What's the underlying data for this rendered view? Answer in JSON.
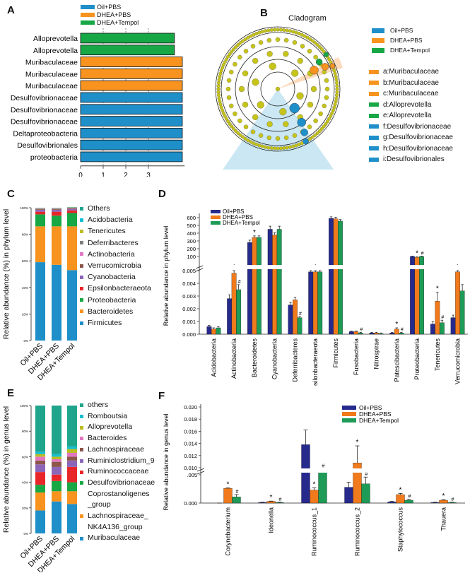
{
  "panels": {
    "A": {
      "letter": "A"
    },
    "B": {
      "letter": "B",
      "title": "Cladogram"
    },
    "C": {
      "letter": "C"
    },
    "D": {
      "letter": "D"
    },
    "E": {
      "letter": "E"
    },
    "F": {
      "letter": "F"
    }
  },
  "colors": {
    "oil_pbs": "#1f8fc9",
    "dhea_pbs": "#f7931e",
    "dhea_tempol": "#17a845",
    "navy": "#262a8c",
    "orange": "#f07a1c",
    "green": "#1e9b57",
    "node_yellow": "#c6c41a"
  },
  "chart_data": [
    {
      "panel": "A",
      "type": "bar",
      "orientation": "horizontal",
      "categories": [
        "Alloprevotella",
        "Alloprevotella",
        "Muribaculaceae",
        "Muribaculaceae",
        "Muribaculaceae",
        "Desulfovibrionaceae",
        "Desulfovibrionaceae",
        "Desulfovibrionaceae",
        "Deltaproteobacteria",
        "Desulfovibrionales",
        "proteobacteria"
      ],
      "values": [
        4.15,
        4.15,
        4.5,
        4.5,
        4.5,
        4.5,
        4.5,
        4.5,
        4.5,
        4.5,
        4.5
      ],
      "groups": [
        "DHEA+Tempol",
        "DHEA+Tempol",
        "DHEA+PBS",
        "DHEA+PBS",
        "DHEA+PBS",
        "Oil+PBS",
        "Oil+PBS",
        "Oil+PBS",
        "Oil+PBS",
        "Oil+PBS",
        "Oil+PBS"
      ],
      "legend": [
        "Oil+PBS",
        "DHEA+PBS",
        "DHEA+Tempol"
      ],
      "xlabel": "LDA SCORE (log 10)",
      "xticks": [
        0,
        1,
        2,
        3
      ],
      "xlim": [
        0,
        4.6
      ],
      "grid": "vertical dashed"
    },
    {
      "panel": "B",
      "type": "other",
      "title": "Cladogram",
      "legend": [
        "Oil+PBS",
        "DHEA+PBS",
        "DHEA+Tempol"
      ],
      "labels": [
        {
          "text": "a:Muribaculaceae",
          "group": "DHEA+PBS"
        },
        {
          "text": "b:Muribaculaceae",
          "group": "DHEA+PBS"
        },
        {
          "text": "c:Muribaculaceae",
          "group": "DHEA+PBS"
        },
        {
          "text": "d:Alloprevotella",
          "group": "DHEA+Tempol"
        },
        {
          "text": "e:Alloprevotella",
          "group": "DHEA+Tempol"
        },
        {
          "text": "f:Desulfovibrionaceae",
          "group": "Oil+PBS"
        },
        {
          "text": "g:Desulfovibrionaceae",
          "group": "Oil+PBS"
        },
        {
          "text": "h:Desulfovibrionaceae",
          "group": "Oil+PBS"
        },
        {
          "text": "i:Desulfovibrionales",
          "group": "Oil+PBS"
        }
      ]
    },
    {
      "panel": "C",
      "type": "bar",
      "stacked": true,
      "categories": [
        "Oil+PBS",
        "DHEA+PBS",
        "DHEA+Tempol"
      ],
      "ylabel": "Relative abundance (%) in phylum level",
      "yticks": [
        "0%",
        "20%",
        "40%",
        "60%",
        "80%",
        "100%"
      ],
      "ylim": [
        0,
        100
      ],
      "series": [
        {
          "name": "Firmicutes",
          "color": "#1f8fc9",
          "values": [
            59,
            57,
            53
          ]
        },
        {
          "name": "Bacteroidetes",
          "color": "#f7931e",
          "values": [
            27,
            29,
            33
          ]
        },
        {
          "name": "Proteobacteria",
          "color": "#17a845",
          "values": [
            9,
            8,
            10
          ]
        },
        {
          "name": "Epsilonbacteraeota",
          "color": "#e8262a",
          "values": [
            2,
            3,
            2
          ]
        },
        {
          "name": "Cyanobacteria",
          "color": "#8b66b8",
          "values": [
            1.5,
            1.5,
            1
          ]
        },
        {
          "name": "Verrucomicrobia",
          "color": "#8c564b",
          "values": [
            0.5,
            0.5,
            0.5
          ]
        },
        {
          "name": "Actinobacteria",
          "color": "#e377c2",
          "values": [
            0.3,
            0.3,
            0.3
          ]
        },
        {
          "name": "Deferribacteres",
          "color": "#7f7f7f",
          "values": [
            0.2,
            0.2,
            0.2
          ]
        },
        {
          "name": "Tenericutes",
          "color": "#bcbd22",
          "values": [
            0.2,
            0.2,
            0.2
          ]
        },
        {
          "name": "Acidobacteria",
          "color": "#17becf",
          "values": [
            0.1,
            0.1,
            0.1
          ]
        },
        {
          "name": "Others",
          "color": "#1fa58c",
          "values": [
            0.2,
            0.2,
            0.2
          ]
        }
      ],
      "legend_order": [
        "Others",
        "Acidobacteria",
        "Tenericutes",
        "Deferribacteres",
        "Actinobacteria",
        "Verrucomicrobia",
        "Cyanobacteria",
        "Epsilonbacteraeota",
        "Proteobacteria",
        "Bacteroidetes",
        "Firmicutes"
      ]
    },
    {
      "panel": "D",
      "type": "bar",
      "ylabel": "Relative abundance in phylum level",
      "legend": [
        "Oil+PBS",
        "DHEA+PBS",
        "DHEA+Tempol"
      ],
      "yticks_upper": [
        "0",
        "100",
        "200",
        "300",
        "400",
        "500",
        "600"
      ],
      "yticks_lower": [
        "0.000",
        "0.001",
        "0.002",
        "0.003",
        "0.004",
        "0.005"
      ],
      "categories": [
        "Acidobacteria",
        "Actinobacteria",
        "Bacteroidetes",
        "Cyanobacteria",
        "Deferribacteres",
        "Epsilonbacteraeota",
        "Firmicutes",
        "Fusobacteria",
        "Nitrospirae",
        "Patescibacteria",
        "Proteobacteria",
        "Tenericutes",
        "Verrucomicrobia"
      ],
      "segment": [
        "low",
        "low",
        "high",
        "high",
        "low",
        "low",
        "high",
        "low",
        "low",
        "low",
        "high",
        "low",
        "low"
      ],
      "series": [
        {
          "name": "Oil+PBS",
          "values": [
            0.0006,
            0.0028,
            280,
            450,
            0.0023,
            0.0049,
            590,
            0.0002,
            0.0001,
            0.0001,
            100,
            0.0008,
            0.0013
          ],
          "err": [
            0.0001,
            0.0003,
            30,
            40,
            0.0002,
            0.0001,
            20,
            5e-05,
            5e-05,
            5e-05,
            5,
            0.0002,
            0.0002
          ]
        },
        {
          "name": "DHEA+PBS",
          "values": [
            0.0004,
            0.0048,
            345,
            375,
            0.0027,
            0.0049,
            585,
            0.0002,
            0.0001,
            0.0004,
            90,
            0.0026,
            0.0049
          ],
          "err": [
            0.0001,
            0.0003,
            20,
            30,
            0.0002,
            0.0001,
            20,
            5e-05,
            5e-05,
            0.0001,
            5,
            0.0007,
            0.0002
          ]
        },
        {
          "name": "DHEA+Tempol",
          "values": [
            0.0005,
            0.0035,
            345,
            450,
            0.0013,
            0.0049,
            555,
            0.0001,
            5e-05,
            0.0001,
            100,
            0.0009,
            0.0034
          ],
          "err": [
            0.0001,
            0.0004,
            20,
            40,
            0.0001,
            0.0001,
            20,
            5e-05,
            5e-05,
            5e-05,
            5,
            0.0002,
            0.0005
          ]
        }
      ],
      "marks_star": [
        "Actinobacteria",
        "Bacteroidetes",
        "Epsilonbacteraeota",
        "Patescibacteria",
        "Proteobacteria",
        "Tenericutes",
        "Verrucomicrobia"
      ],
      "marks_hash": [
        "Actinobacteria",
        "Deferribacteres",
        "Fusobacteria",
        "Patescibacteria",
        "Proteobacteria",
        "Tenericutes"
      ]
    },
    {
      "panel": "E",
      "type": "bar",
      "stacked": true,
      "categories": [
        "Oil+PBS",
        "DHEA+PBS",
        "DHEA+Tempol"
      ],
      "ylabel": "Relative abundance (%) in genus  level",
      "yticks": [
        "0%",
        "20%",
        "40%",
        "60%",
        "80%",
        "100%"
      ],
      "ylim": [
        0,
        100
      ],
      "series": [
        {
          "name": "Muribaculaceae",
          "color": "#1f8fc9",
          "values": [
            18,
            25,
            23
          ]
        },
        {
          "name": "Lachnospiraceae_ NK4A136_group",
          "color": "#f7931e",
          "values": [
            14,
            8,
            10
          ]
        },
        {
          "name": "Desulfovibrionaceae Coprostanoligenes _group",
          "color": "#17a845",
          "values": [
            6,
            8,
            7
          ]
        },
        {
          "name": "Ruminococcaceae",
          "color": "#e8262a",
          "values": [
            10,
            5,
            12
          ]
        },
        {
          "name": "Ruminiclostridium_9",
          "color": "#8b66b8",
          "values": [
            6,
            6,
            5
          ]
        },
        {
          "name": "Lachnospiraceae",
          "color": "#8c564b",
          "values": [
            3,
            4,
            3
          ]
        },
        {
          "name": "Bacteroides",
          "color": "#e377c2",
          "values": [
            3,
            2,
            3
          ]
        },
        {
          "name": "Alloprevotella",
          "color": "#bcbd22",
          "values": [
            2,
            2,
            3
          ]
        },
        {
          "name": "Romboutsia",
          "color": "#17becf",
          "values": [
            2,
            2,
            2
          ]
        },
        {
          "name": "others",
          "color": "#1fa58c",
          "values": [
            36,
            38,
            32
          ]
        }
      ],
      "legend_order": [
        "others",
        "Romboutsia",
        "Alloprevotella",
        "Bacteroides",
        "Lachnospiraceae",
        "Ruminiclostridium_9",
        "Ruminococcaceae",
        "Desulfovibrionaceae Coprostanoligenes _group",
        "Lachnospiraceae_ NK4A136_group",
        "Muribaculaceae"
      ]
    },
    {
      "panel": "F",
      "type": "bar",
      "ylabel": "Relative abundance in genus level",
      "legend": [
        "Oil+PBS",
        "DHEA+PBS",
        "DHEA+Tempol"
      ],
      "yticks": [
        "0.000",
        ".005",
        "0.010",
        "0.012",
        "0.014",
        "0.016",
        "0.018",
        "0.020"
      ],
      "categories": [
        "Corynebacterium",
        "Ideonella",
        "Ruminococcus_1",
        "Ruminococcus_2",
        "Staphylococcus",
        "Thauera"
      ],
      "series": [
        {
          "name": "Oil+PBS",
          "values": [
            0.0,
            0.0001,
            0.0138,
            0.0028,
            0.0002,
            0.0001
          ],
          "err": [
            0.0,
            5e-05,
            0.0024,
            0.0009,
            0.0001,
            5e-05
          ]
        },
        {
          "name": "DHEA+PBS",
          "values": [
            0.0026,
            0.0003,
            0.0023,
            0.0108,
            0.0015,
            0.0005
          ],
          "err": [
            0.0001,
            5e-05,
            0.0004,
            0.0028,
            0.0002,
            0.0001
          ]
        },
        {
          "name": "DHEA+Tempol",
          "values": [
            0.0011,
            0.0001,
            0.0096,
            0.0034,
            0.0005,
            0.0001
          ],
          "err": [
            0.0004,
            5e-05,
            0.0002,
            0.0012,
            0.0002,
            5e-05
          ]
        }
      ],
      "marks_star": [
        "Corynebacterium",
        "Ideonella",
        "Ruminococcus_1",
        "Ruminococcus_2",
        "Staphylococcus",
        "Thauera"
      ],
      "marks_hash": [
        "Corynebacterium",
        "Ideonella",
        "Ruminococcus_1",
        "Ruminococcus_2",
        "Staphylococcus",
        "Thauera"
      ]
    }
  ]
}
